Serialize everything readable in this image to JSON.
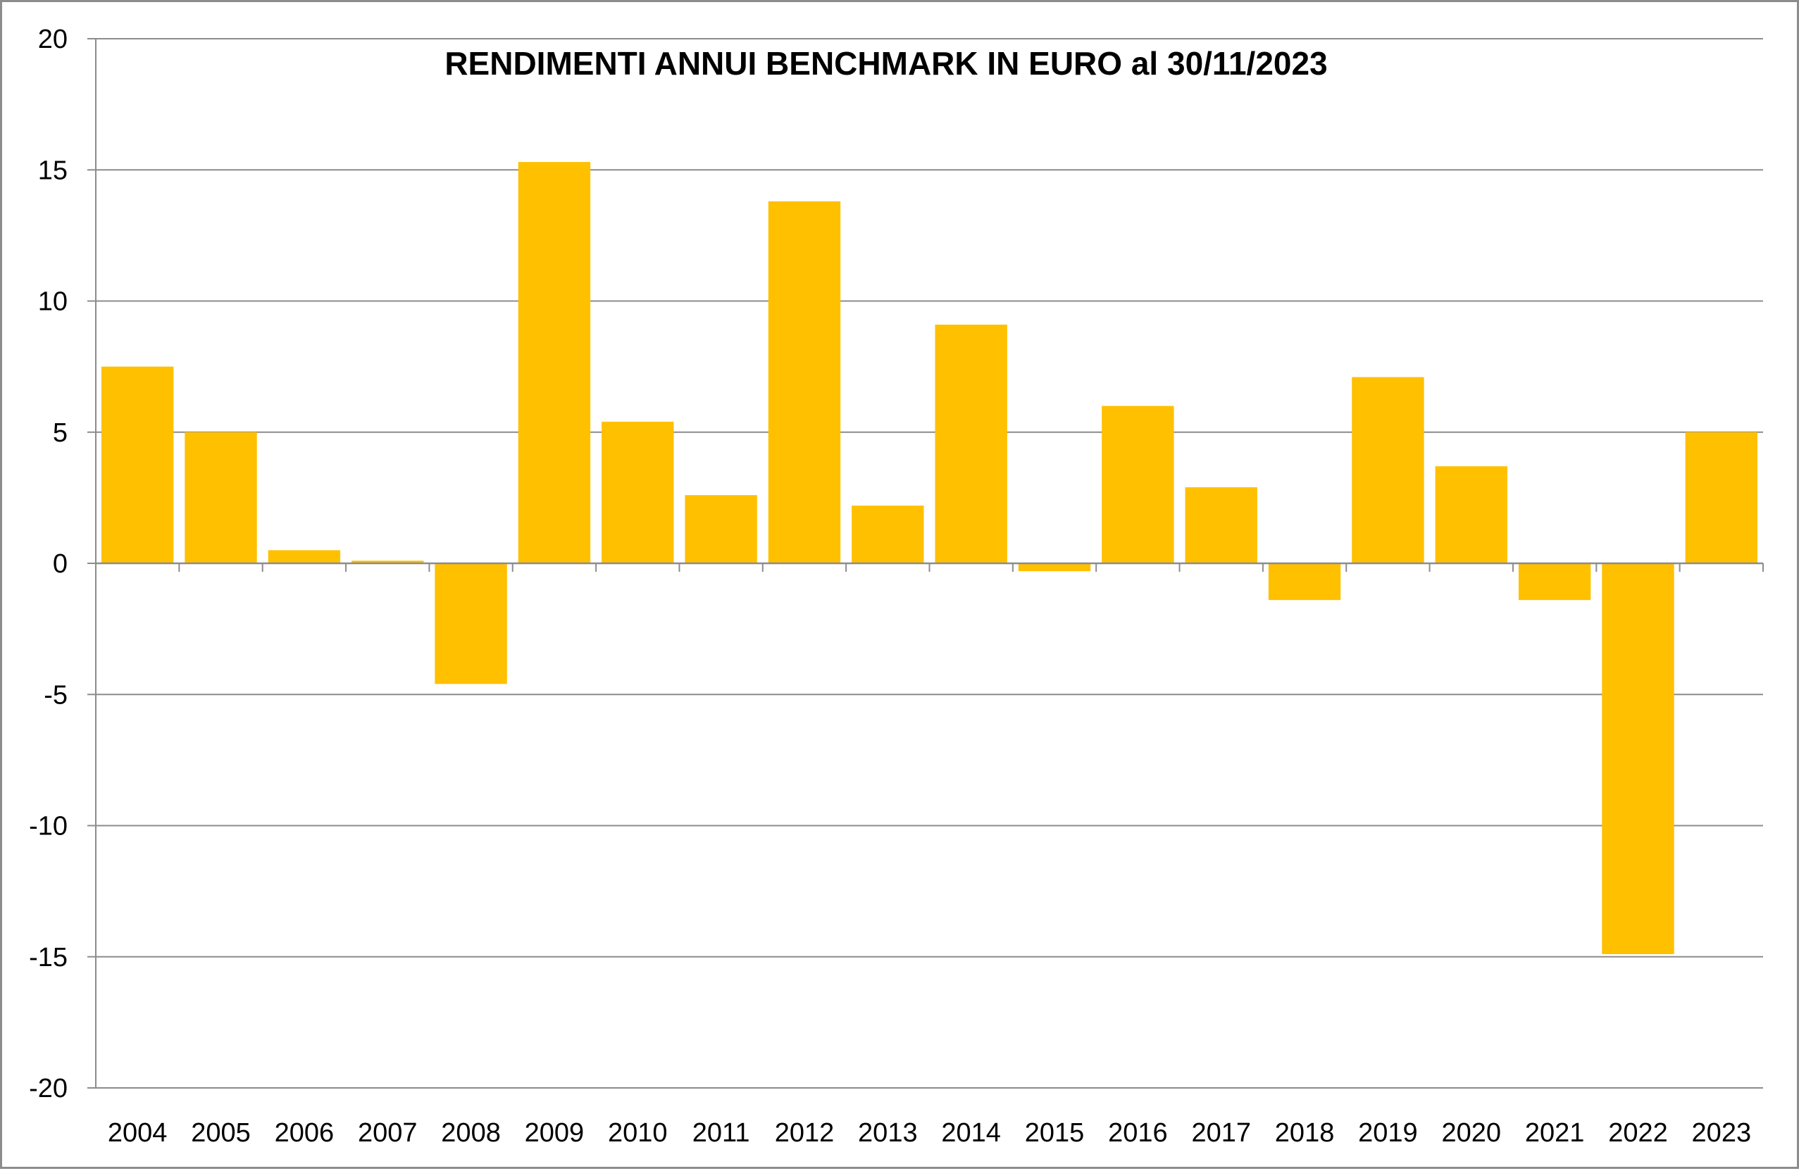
{
  "chart_data": {
    "type": "bar",
    "title": "RENDIMENTI ANNUI BENCHMARK IN EURO al 30/11/2023",
    "xlabel": "",
    "ylabel": "",
    "categories": [
      "2004",
      "2005",
      "2006",
      "2007",
      "2008",
      "2009",
      "2010",
      "2011",
      "2012",
      "2013",
      "2014",
      "2015",
      "2016",
      "2017",
      "2018",
      "2019",
      "2020",
      "2021",
      "2022",
      "2023"
    ],
    "values": [
      7.5,
      5.0,
      0.5,
      0.1,
      -4.6,
      15.3,
      5.4,
      2.6,
      13.8,
      2.2,
      9.1,
      -0.3,
      6.0,
      2.9,
      -1.4,
      7.1,
      3.7,
      -1.4,
      -14.9,
      5.0
    ],
    "ylim": [
      -20,
      20
    ],
    "yticks": [
      20,
      15,
      10,
      5,
      0,
      -5,
      -10,
      -15,
      -20
    ],
    "grid": true,
    "legend": "none",
    "colors": {
      "bar": "#FFC000",
      "grid": "#8c8c8c",
      "axis": "#8c8c8c"
    }
  }
}
